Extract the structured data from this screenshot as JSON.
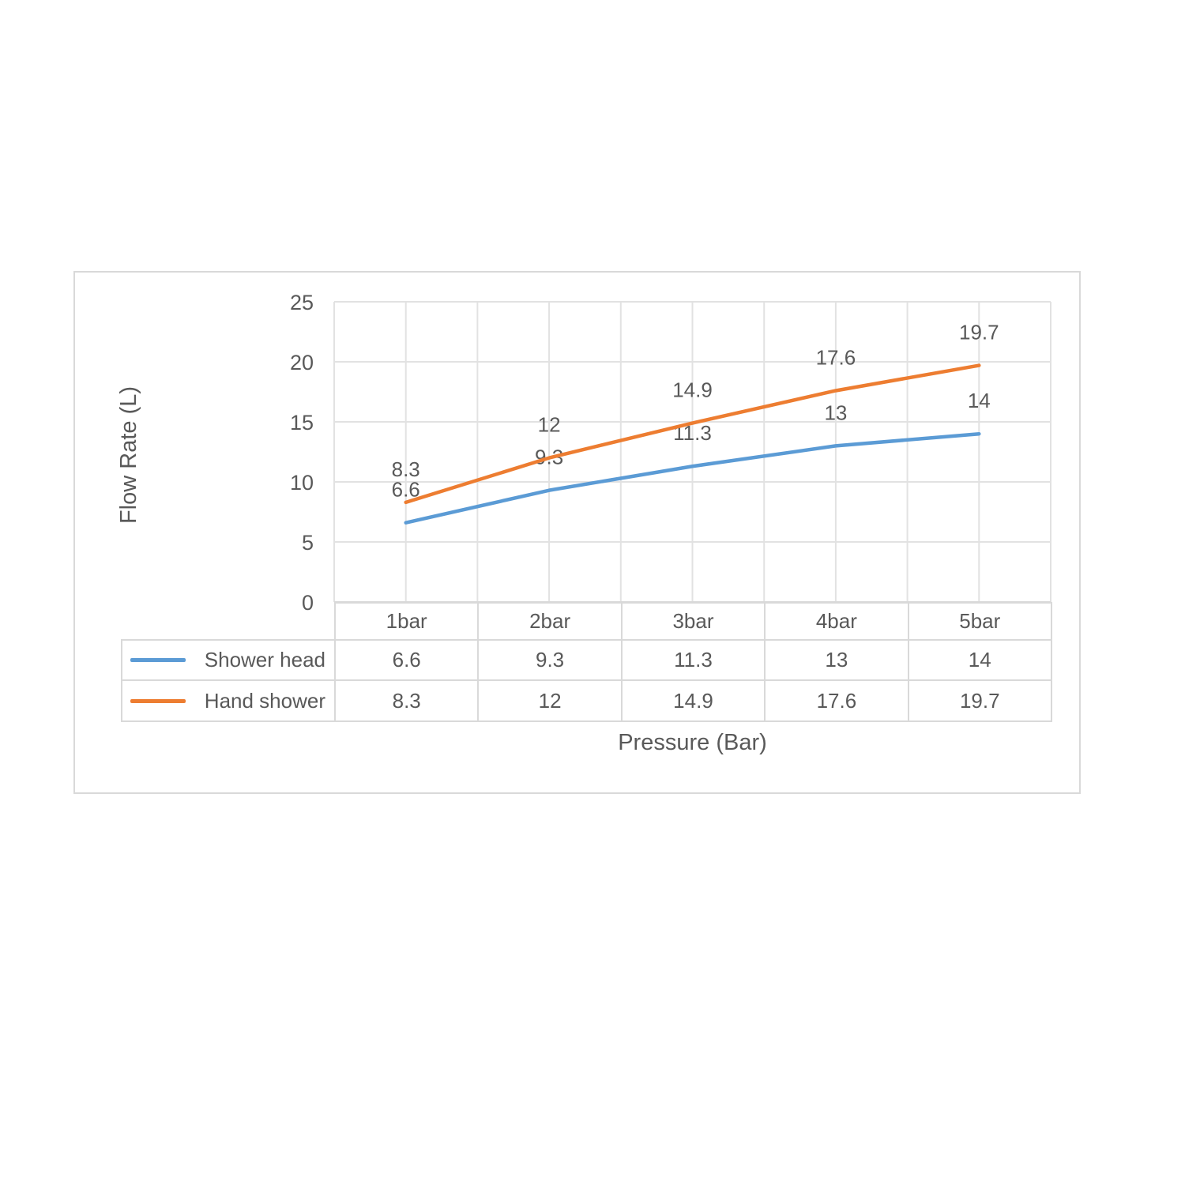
{
  "chart_data": {
    "type": "line",
    "title": "",
    "xlabel": "Pressure (Bar)",
    "ylabel": "Flow Rate (L)",
    "categories": [
      "1bar",
      "2bar",
      "3bar",
      "4bar",
      "5bar"
    ],
    "series": [
      {
        "name": "Shower head",
        "color": "#5B9BD5",
        "values": [
          6.6,
          9.3,
          11.3,
          13,
          14
        ]
      },
      {
        "name": "Hand shower",
        "color": "#ED7D31",
        "values": [
          8.3,
          12,
          14.9,
          17.6,
          19.7
        ]
      }
    ],
    "ylim": [
      0,
      25
    ],
    "yticks": [
      0,
      5,
      10,
      15,
      20,
      25
    ],
    "grid": true,
    "data_labels": "above",
    "legend_position": "data-table-left",
    "styles": {
      "grid_color": "#E2E2E2",
      "axis_color": "#D9D9D9",
      "text_color": "#595959",
      "frame_color": "#D9D9D9",
      "background": "#FFFFFF"
    }
  }
}
